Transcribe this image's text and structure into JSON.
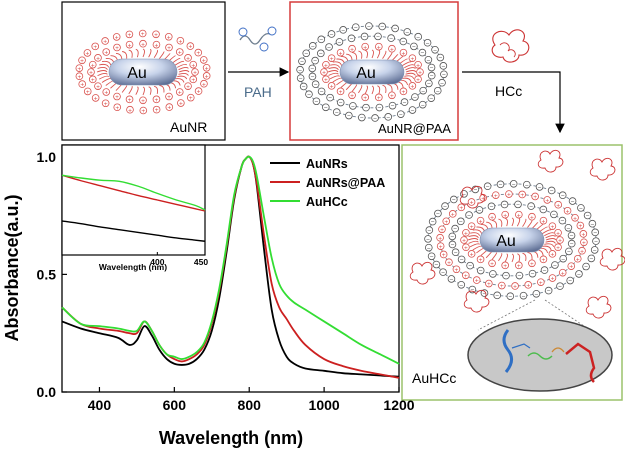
{
  "scheme": {
    "panel1_label": "AuNR",
    "panel2_label": "AuNR@PAA",
    "panel3_label": "AuHCc",
    "core_label": "Au",
    "arrow1_label": "PAH",
    "arrow2_label": "HCc"
  },
  "colors": {
    "aunrs": "#000000",
    "aunrs_paa": "#cc2020",
    "auhcc": "#33dd33",
    "panel2_border": "#d63b3b",
    "panel3_border": "#9bc26b",
    "charge": "#d9534f",
    "polymer": "#6f7f90"
  },
  "chart_data": {
    "type": "line",
    "xlabel": "Wavelength (nm)",
    "ylabel": "Absorbance(a.u.)",
    "xlim": [
      300,
      1200
    ],
    "ylim": [
      0,
      1.0
    ],
    "x_ticks": [
      400,
      600,
      800,
      1000,
      1200
    ],
    "y_ticks": [
      0.0,
      0.5,
      1.0
    ],
    "x_tick_labels": [
      "400",
      "600",
      "800",
      "1000",
      "1200"
    ],
    "y_tick_labels": [
      "0.0",
      "0.5",
      "1.0"
    ],
    "legend_position": "top-right",
    "series": [
      {
        "name": "AuNRs",
        "color": "#000000",
        "x": [
          300,
          350,
          400,
          450,
          480,
          500,
          520,
          540,
          560,
          580,
          600,
          620,
          640,
          660,
          680,
          700,
          720,
          740,
          760,
          780,
          790,
          800,
          810,
          820,
          840,
          860,
          880,
          900,
          920,
          950,
          1000,
          1050,
          1100,
          1150,
          1200
        ],
        "y": [
          0.3,
          0.27,
          0.25,
          0.23,
          0.2,
          0.22,
          0.28,
          0.24,
          0.18,
          0.14,
          0.12,
          0.115,
          0.12,
          0.14,
          0.18,
          0.26,
          0.4,
          0.6,
          0.82,
          0.96,
          0.99,
          1.0,
          0.97,
          0.88,
          0.6,
          0.35,
          0.22,
          0.15,
          0.12,
          0.1,
          0.09,
          0.08,
          0.075,
          0.07,
          0.065
        ]
      },
      {
        "name": "AuNRs@PAA",
        "color": "#cc2020",
        "x": [
          300,
          350,
          400,
          450,
          480,
          500,
          520,
          540,
          560,
          580,
          600,
          620,
          640,
          660,
          680,
          700,
          720,
          740,
          760,
          780,
          790,
          800,
          810,
          820,
          840,
          860,
          880,
          900,
          920,
          950,
          1000,
          1050,
          1100,
          1150,
          1200
        ],
        "y": [
          0.36,
          0.29,
          0.27,
          0.26,
          0.25,
          0.25,
          0.3,
          0.26,
          0.2,
          0.16,
          0.14,
          0.13,
          0.14,
          0.16,
          0.2,
          0.29,
          0.43,
          0.62,
          0.83,
          0.96,
          0.99,
          1.0,
          0.97,
          0.89,
          0.66,
          0.46,
          0.36,
          0.31,
          0.26,
          0.2,
          0.14,
          0.11,
          0.09,
          0.075,
          0.06
        ]
      },
      {
        "name": "AuHCc",
        "color": "#33dd33",
        "x": [
          300,
          350,
          400,
          450,
          480,
          500,
          520,
          540,
          560,
          580,
          600,
          620,
          640,
          660,
          680,
          700,
          720,
          740,
          760,
          780,
          790,
          800,
          810,
          820,
          840,
          860,
          880,
          900,
          920,
          950,
          1000,
          1050,
          1100,
          1150,
          1200
        ],
        "y": [
          0.36,
          0.29,
          0.28,
          0.27,
          0.26,
          0.26,
          0.3,
          0.26,
          0.2,
          0.16,
          0.15,
          0.14,
          0.15,
          0.17,
          0.21,
          0.3,
          0.44,
          0.63,
          0.84,
          0.96,
          0.99,
          1.0,
          0.98,
          0.92,
          0.74,
          0.57,
          0.46,
          0.41,
          0.38,
          0.35,
          0.3,
          0.25,
          0.2,
          0.16,
          0.12
        ]
      }
    ],
    "inset": {
      "type": "line",
      "xlabel": "Wavelength (nm)",
      "xlim": [
        300,
        450
      ],
      "x_ticks": [
        400,
        450
      ],
      "x_tick_labels": [
        "400",
        "450"
      ],
      "series": [
        {
          "name": "AuNRs",
          "color": "#000000",
          "x": [
            300,
            320,
            340,
            360,
            380,
            400,
            420,
            440,
            450
          ],
          "y": [
            0.762,
            0.757,
            0.751,
            0.746,
            0.741,
            0.736,
            0.731,
            0.727,
            0.725
          ]
        },
        {
          "name": "AuNRs@PAA",
          "color": "#cc2020",
          "x": [
            300,
            320,
            340,
            360,
            380,
            400,
            420,
            440,
            450
          ],
          "y": [
            0.845,
            0.835,
            0.826,
            0.817,
            0.808,
            0.8,
            0.792,
            0.784,
            0.78
          ]
        },
        {
          "name": "AuHCc",
          "color": "#33dd33",
          "x": [
            300,
            320,
            340,
            360,
            380,
            400,
            420,
            440,
            450
          ],
          "y": [
            0.845,
            0.84,
            0.836,
            0.834,
            0.825,
            0.812,
            0.8,
            0.79,
            0.782
          ]
        }
      ]
    }
  }
}
